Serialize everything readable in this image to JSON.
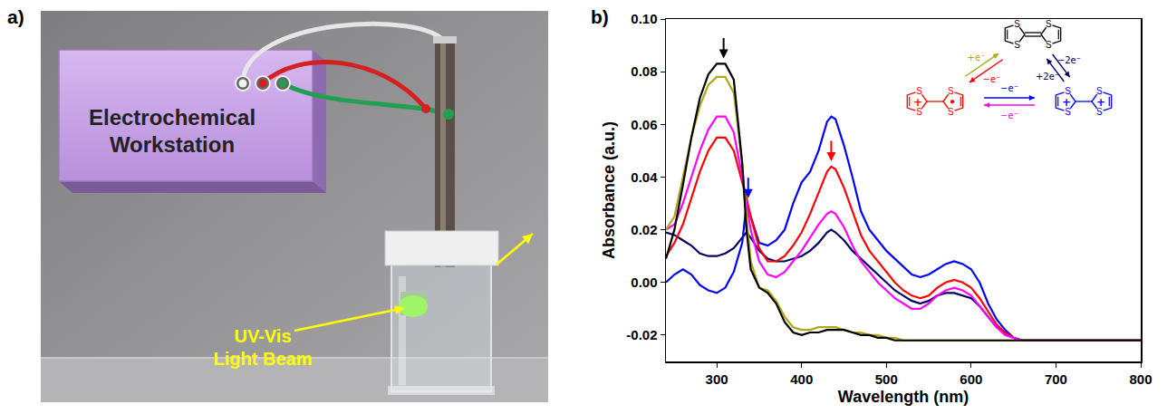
{
  "panel_a": {
    "label": "a)",
    "workstation": "Electrochemical Workstation",
    "beam": "UV-Vis Light Beam"
  },
  "chart_data": {
    "panel_label": "b)",
    "type": "line",
    "x_label": "Wavelength (nm)",
    "y_label": "Absorbance (a.u.)",
    "x": [
      240,
      250,
      260,
      270,
      280,
      290,
      300,
      310,
      320,
      330,
      335,
      340,
      350,
      360,
      370,
      380,
      390,
      400,
      410,
      420,
      430,
      435,
      440,
      450,
      460,
      470,
      480,
      490,
      500,
      510,
      520,
      530,
      540,
      550,
      560,
      570,
      580,
      590,
      600,
      610,
      620,
      630,
      640,
      650,
      660,
      680,
      700,
      750,
      800
    ],
    "series": [
      {
        "color": "#000066",
        "values": [
          0.019,
          0.018,
          0.016,
          0.014,
          0.011,
          0.01,
          0.01,
          0.011,
          0.013,
          0.017,
          0.019,
          0.017,
          0.012,
          0.009,
          0.008,
          0.008,
          0.009,
          0.01,
          0.012,
          0.015,
          0.019,
          0.02,
          0.019,
          0.016,
          0.012,
          0.009,
          0.006,
          0.003,
          0.0,
          -0.003,
          -0.005,
          -0.007,
          -0.008,
          -0.007,
          -0.005,
          -0.004,
          -0.004,
          -0.005,
          -0.006,
          -0.009,
          -0.013,
          -0.017,
          -0.019,
          -0.021,
          -0.022,
          -0.022,
          -0.022,
          -0.022,
          -0.022
        ]
      },
      {
        "color": "#0000ff",
        "values": [
          0.0,
          0.003,
          0.005,
          0.003,
          -0.001,
          -0.003,
          -0.004,
          -0.002,
          0.004,
          0.015,
          0.03,
          0.025,
          0.015,
          0.014,
          0.016,
          0.02,
          0.03,
          0.038,
          0.042,
          0.05,
          0.061,
          0.063,
          0.062,
          0.052,
          0.04,
          0.027,
          0.02,
          0.016,
          0.012,
          0.009,
          0.006,
          0.003,
          0.002,
          0.003,
          0.005,
          0.007,
          0.008,
          0.007,
          0.005,
          0.0,
          -0.008,
          -0.014,
          -0.018,
          -0.021,
          -0.022,
          -0.022,
          -0.022,
          -0.022,
          -0.022
        ]
      },
      {
        "color": "#ff0000",
        "values": [
          0.01,
          0.015,
          0.022,
          0.032,
          0.042,
          0.05,
          0.055,
          0.055,
          0.05,
          0.038,
          0.032,
          0.025,
          0.013,
          0.008,
          0.008,
          0.01,
          0.014,
          0.019,
          0.026,
          0.034,
          0.042,
          0.044,
          0.043,
          0.036,
          0.027,
          0.018,
          0.012,
          0.008,
          0.004,
          0.0,
          -0.003,
          -0.005,
          -0.006,
          -0.005,
          -0.002,
          0.0,
          0.001,
          0.0,
          -0.002,
          -0.006,
          -0.011,
          -0.016,
          -0.019,
          -0.021,
          -0.022,
          -0.022,
          -0.022,
          -0.022,
          -0.022
        ]
      },
      {
        "color": "#ff00ff",
        "values": [
          0.02,
          0.022,
          0.03,
          0.04,
          0.05,
          0.058,
          0.063,
          0.063,
          0.057,
          0.04,
          0.03,
          0.02,
          0.008,
          0.003,
          0.002,
          0.004,
          0.008,
          0.012,
          0.017,
          0.022,
          0.026,
          0.027,
          0.026,
          0.021,
          0.014,
          0.008,
          0.004,
          0.0,
          -0.003,
          -0.006,
          -0.008,
          -0.01,
          -0.01,
          -0.008,
          -0.005,
          -0.003,
          -0.002,
          -0.003,
          -0.005,
          -0.009,
          -0.013,
          -0.017,
          -0.02,
          -0.021,
          -0.022,
          -0.022,
          -0.022,
          -0.022,
          -0.022
        ]
      },
      {
        "color": "#b3a619",
        "values": [
          0.02,
          0.025,
          0.04,
          0.055,
          0.067,
          0.075,
          0.078,
          0.078,
          0.072,
          0.045,
          0.025,
          0.008,
          -0.002,
          -0.003,
          -0.007,
          -0.013,
          -0.017,
          -0.018,
          -0.018,
          -0.017,
          -0.017,
          -0.017,
          -0.017,
          -0.018,
          -0.019,
          -0.019,
          -0.02,
          -0.02,
          -0.021,
          -0.021,
          -0.022,
          -0.022,
          -0.022,
          -0.022,
          -0.022,
          -0.022,
          -0.022,
          -0.022,
          -0.022,
          -0.022,
          -0.022,
          -0.022,
          -0.022,
          -0.022,
          -0.022,
          -0.022,
          -0.022,
          -0.022,
          -0.022
        ]
      },
      {
        "color": "#000000",
        "values": [
          0.009,
          0.02,
          0.037,
          0.055,
          0.07,
          0.079,
          0.083,
          0.083,
          0.077,
          0.045,
          0.02,
          0.005,
          -0.002,
          -0.004,
          -0.008,
          -0.015,
          -0.019,
          -0.02,
          -0.019,
          -0.019,
          -0.018,
          -0.018,
          -0.018,
          -0.018,
          -0.019,
          -0.02,
          -0.02,
          -0.021,
          -0.021,
          -0.022,
          -0.022,
          -0.022,
          -0.022,
          -0.022,
          -0.022,
          -0.022,
          -0.022,
          -0.022,
          -0.022,
          -0.022,
          -0.022,
          -0.022,
          -0.022,
          -0.022,
          -0.022,
          -0.022,
          -0.022,
          -0.022,
          -0.022
        ]
      }
    ],
    "xlim": [
      240,
      800
    ],
    "xticks": [
      300,
      400,
      500,
      600,
      700,
      800
    ],
    "ylim": [
      -0.03,
      0.1
    ],
    "yticks": [
      {
        "value": -0.02,
        "label": "-0.02"
      },
      {
        "value": 0,
        "label": "0.00"
      },
      {
        "value": 0.02,
        "label": "0.02"
      },
      {
        "value": 0.04,
        "label": "0.04"
      },
      {
        "value": 0.06,
        "label": "0.06"
      },
      {
        "value": 0.08,
        "label": "0.08"
      },
      {
        "value": 0.1,
        "label": "0.10"
      }
    ],
    "grid": false,
    "arrows": [
      {
        "x": 308,
        "y": 0.085,
        "color": "#000000"
      },
      {
        "x": 337,
        "y": 0.032,
        "color": "#0000ff"
      },
      {
        "x": 435,
        "y": 0.046,
        "color": "#ff0000"
      }
    ],
    "scheme": {
      "atom": "S",
      "cation": "+",
      "radical": "•",
      "species_colors": [
        "#000000",
        "#ff0000",
        "#0000ff"
      ],
      "steps": [
        {
          "from": 1,
          "to": 0,
          "label": "+e⁻",
          "color": "#b3a619"
        },
        {
          "from": 0,
          "to": 1,
          "label": "−e⁻",
          "color": "#ff0000"
        },
        {
          "from": 2,
          "to": 0,
          "label": "+2e⁻",
          "color": "#000066"
        },
        {
          "from": 0,
          "to": 2,
          "label": "−2e⁻",
          "color": "#000066"
        },
        {
          "from": 2,
          "to": 1,
          "label": "−e⁻",
          "color": "#ff00ff"
        },
        {
          "from": 1,
          "to": 2,
          "label": "−e⁻",
          "color": "#0000ff"
        }
      ]
    }
  }
}
